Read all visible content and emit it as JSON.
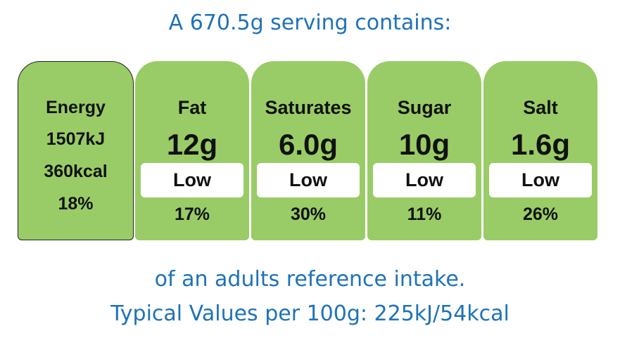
{
  "header": {
    "title": "A 670.5g serving contains:"
  },
  "energy": {
    "label": "Energy",
    "kj": "1507kJ",
    "kcal": "360kcal",
    "percent": "18%"
  },
  "nutrients": [
    {
      "name": "Fat",
      "amount": "12g",
      "level": "Low",
      "percent": "17%"
    },
    {
      "name": "Saturates",
      "amount": "6.0g",
      "level": "Low",
      "percent": "30%"
    },
    {
      "name": "Sugar",
      "amount": "10g",
      "level": "Low",
      "percent": "11%"
    },
    {
      "name": "Salt",
      "amount": "1.6g",
      "level": "Low",
      "percent": "26%"
    }
  ],
  "footer": {
    "line1": "of an adults reference intake.",
    "line2": "Typical Values per 100g: 225kJ/54kcal"
  }
}
